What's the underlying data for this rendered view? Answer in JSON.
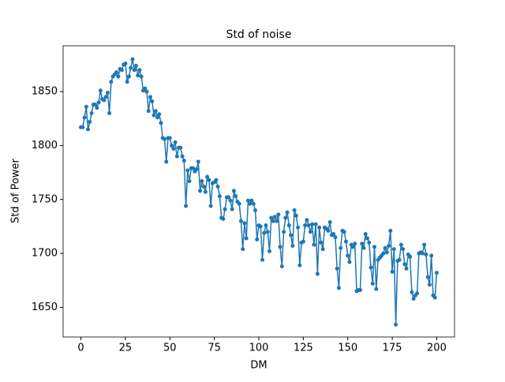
{
  "chart_data": {
    "type": "line",
    "title": "Std of noise",
    "x_label": "DM",
    "y_label": "Std of Power",
    "color": "#1f77b4",
    "markers": true,
    "xlim": [
      -10,
      210
    ],
    "xticks": [
      0,
      25,
      50,
      75,
      100,
      125,
      150,
      175,
      200
    ],
    "ylim": [
      1622.5,
      1892.5
    ],
    "yticks": [
      1650,
      1700,
      1750,
      1800,
      1850
    ],
    "x": [
      0,
      1,
      2,
      3,
      4,
      5,
      6,
      7,
      8,
      9,
      10,
      11,
      12,
      13,
      14,
      15,
      16,
      17,
      18,
      19,
      20,
      21,
      22,
      23,
      24,
      25,
      26,
      27,
      28,
      29,
      30,
      31,
      32,
      33,
      34,
      35,
      36,
      37,
      38,
      39,
      40,
      41,
      42,
      43,
      44,
      45,
      46,
      47,
      48,
      49,
      50,
      51,
      52,
      53,
      54,
      55,
      56,
      57,
      58,
      59,
      60,
      61,
      62,
      63,
      64,
      65,
      66,
      67,
      68,
      69,
      70,
      71,
      72,
      73,
      74,
      75,
      76,
      77,
      78,
      79,
      80,
      81,
      82,
      83,
      84,
      85,
      86,
      87,
      88,
      89,
      90,
      91,
      92,
      93,
      94,
      95,
      96,
      97,
      98,
      99,
      100,
      101,
      102,
      103,
      104,
      105,
      106,
      107,
      108,
      109,
      110,
      111,
      112,
      113,
      114,
      115,
      116,
      117,
      118,
      119,
      120,
      121,
      122,
      123,
      124,
      125,
      126,
      127,
      128,
      129,
      130,
      131,
      132,
      133,
      134,
      135,
      136,
      137,
      138,
      139,
      140,
      141,
      142,
      143,
      144,
      145,
      146,
      147,
      148,
      149,
      150,
      151,
      152,
      153,
      154,
      155,
      156,
      157,
      158,
      159,
      160,
      161,
      162,
      163,
      164,
      165,
      166,
      167,
      168,
      169,
      170,
      171,
      172,
      173,
      174,
      175,
      176,
      177,
      178,
      179,
      180,
      181,
      182,
      183,
      184,
      185,
      186,
      187,
      188,
      189,
      190,
      191,
      192,
      193,
      194,
      195,
      196,
      197,
      198,
      199,
      200
    ],
    "values": [
      1817,
      1817,
      1826,
      1836,
      1815,
      1822,
      1830,
      1838,
      1838,
      1835,
      1840,
      1851,
      1843,
      1842,
      1845,
      1849,
      1830,
      1859,
      1864,
      1866,
      1868,
      1864,
      1871,
      1870,
      1875,
      1876,
      1859,
      1864,
      1872,
      1880,
      1870,
      1874,
      1865,
      1870,
      1864,
      1851,
      1853,
      1850,
      1832,
      1845,
      1841,
      1828,
      1832,
      1826,
      1829,
      1821,
      1807,
      1806,
      1785,
      1807,
      1807,
      1800,
      1797,
      1803,
      1790,
      1798,
      1798,
      1790,
      1786,
      1744,
      1777,
      1767,
      1779,
      1779,
      1776,
      1778,
      1785,
      1758,
      1767,
      1762,
      1757,
      1771,
      1768,
      1744,
      1765,
      1766,
      1768,
      1762,
      1753,
      1733,
      1732,
      1741,
      1752,
      1752,
      1749,
      1741,
      1758,
      1753,
      1748,
      1746,
      1730,
      1704,
      1728,
      1714,
      1749,
      1746,
      1749,
      1746,
      1740,
      1713,
      1726,
      1725,
      1694,
      1719,
      1726,
      1720,
      1702,
      1733,
      1730,
      1734,
      1730,
      1736,
      1706,
      1688,
      1720,
      1733,
      1738,
      1726,
      1717,
      1707,
      1740,
      1735,
      1724,
      1689,
      1710,
      1711,
      1726,
      1731,
      1726,
      1720,
      1727,
      1708,
      1727,
      1681,
      1724,
      1710,
      1704,
      1724,
      1723,
      1721,
      1729,
      1717,
      1718,
      1715,
      1686,
      1668,
      1705,
      1721,
      1720,
      1711,
      1698,
      1692,
      1708,
      1706,
      1709,
      1665,
      1666,
      1666,
      1709,
      1705,
      1718,
      1714,
      1710,
      1687,
      1672,
      1706,
      1667,
      1694,
      1696,
      1698,
      1700,
      1705,
      1701,
      1707,
      1721,
      1683,
      1704,
      1634,
      1693,
      1694,
      1708,
      1704,
      1690,
      1686,
      1699,
      1697,
      1664,
      1658,
      1661,
      1663,
      1700,
      1701,
      1700,
      1708,
      1699,
      1678,
      1671,
      1698,
      1661,
      1659,
      1682
    ]
  }
}
